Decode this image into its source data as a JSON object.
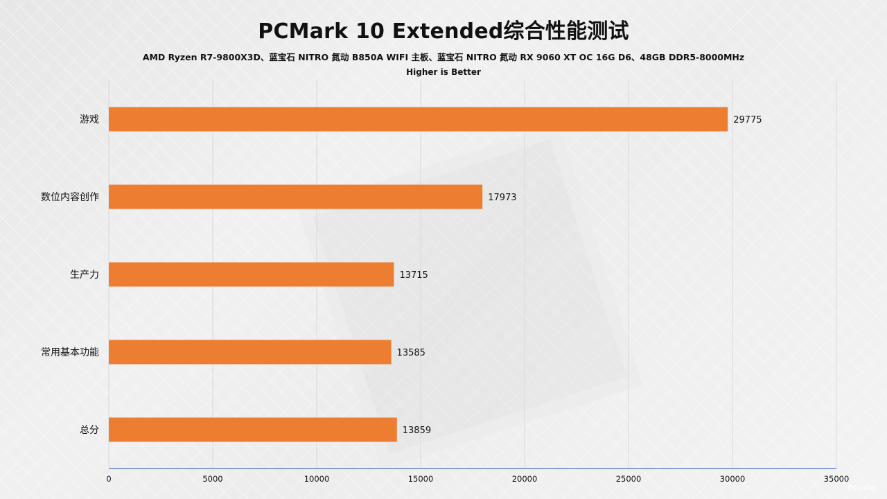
{
  "chart_data": {
    "type": "bar",
    "orientation": "horizontal",
    "title": "PCMark 10 Extended综合性能测试",
    "subtitle": "AMD Ryzen R7-9800X3D、蓝宝石 NITRO 氮动 B850A WIFI 主板、蓝宝石 NITRO 氮动 RX 9060 XT OC 16G D6、48GB DDR5-8000MHz",
    "note": "Higher is Better",
    "categories": [
      "游戏",
      "数位内容创作",
      "生产力",
      "常用基本功能",
      "总分"
    ],
    "values": [
      29775,
      17973,
      13715,
      13585,
      13859
    ],
    "xlim": [
      0,
      35000
    ],
    "x_ticks": [
      0,
      5000,
      10000,
      15000,
      20000,
      25000,
      30000,
      35000
    ],
    "grid": "vertical",
    "legend": "none",
    "bar_color": "#ED7D31",
    "axis_color": "#4472C4",
    "grid_color": "#d9d9d9"
  },
  "watermark": "PConline"
}
